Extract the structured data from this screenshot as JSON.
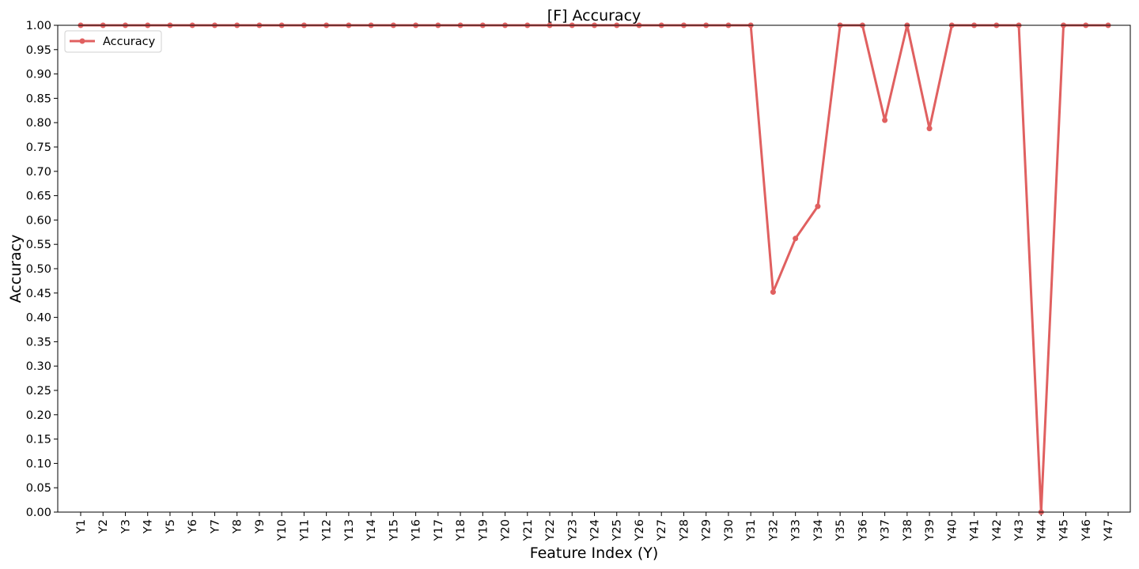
{
  "chart_data": {
    "type": "line",
    "title": "[F] Accuracy",
    "xlabel": "Feature Index (Y)",
    "ylabel": "Accuracy",
    "ylim": [
      0,
      1
    ],
    "yticks": [
      "0.00",
      "0.05",
      "0.10",
      "0.15",
      "0.20",
      "0.25",
      "0.30",
      "0.35",
      "0.40",
      "0.45",
      "0.50",
      "0.55",
      "0.60",
      "0.65",
      "0.70",
      "0.75",
      "0.80",
      "0.85",
      "0.90",
      "0.95",
      "1.00"
    ],
    "categories": [
      "Y1",
      "Y2",
      "Y3",
      "Y4",
      "Y5",
      "Y6",
      "Y7",
      "Y8",
      "Y9",
      "Y10",
      "Y11",
      "Y12",
      "Y13",
      "Y14",
      "Y15",
      "Y16",
      "Y17",
      "Y18",
      "Y19",
      "Y20",
      "Y21",
      "Y22",
      "Y23",
      "Y24",
      "Y25",
      "Y26",
      "Y27",
      "Y28",
      "Y29",
      "Y30",
      "Y31",
      "Y32",
      "Y33",
      "Y34",
      "Y35",
      "Y36",
      "Y37",
      "Y38",
      "Y39",
      "Y40",
      "Y41",
      "Y42",
      "Y43",
      "Y44",
      "Y45",
      "Y46",
      "Y47"
    ],
    "series": [
      {
        "name": "Accuracy",
        "color": "#e06060",
        "values": [
          1,
          1,
          1,
          1,
          1,
          1,
          1,
          1,
          1,
          1,
          1,
          1,
          1,
          1,
          1,
          1,
          1,
          1,
          1,
          1,
          1,
          1,
          1,
          1,
          1,
          1,
          1,
          1,
          1,
          1,
          1,
          0.452,
          0.562,
          0.628,
          1,
          1,
          0.805,
          1,
          0.788,
          1,
          1,
          1,
          1,
          0,
          1,
          1,
          1
        ]
      }
    ],
    "legend": "top-left",
    "grid": false
  }
}
